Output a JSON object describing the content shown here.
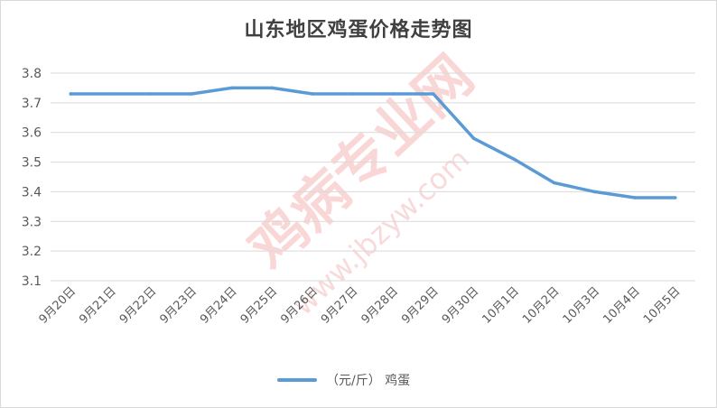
{
  "chart_data": {
    "type": "line",
    "title": "山东地区鸡蛋价格走势图",
    "categories": [
      "9月20日",
      "9月21日",
      "9月22日",
      "9月23日",
      "9月24日",
      "9月25日",
      "9月26日",
      "9月27日",
      "9月28日",
      "9月29日",
      "9月30日",
      "10月1日",
      "10月2日",
      "10月3日",
      "10月4日",
      "10月5日"
    ],
    "series": [
      {
        "name": "（元/斤） 鸡蛋",
        "values": [
          3.73,
          3.73,
          3.73,
          3.73,
          3.75,
          3.75,
          3.73,
          3.73,
          3.73,
          3.73,
          3.58,
          3.51,
          3.43,
          3.4,
          3.38,
          3.38
        ]
      }
    ],
    "ylim": [
      3.1,
      3.8
    ],
    "yticks": [
      "3.1",
      "3.2",
      "3.3",
      "3.4",
      "3.5",
      "3.6",
      "3.7",
      "3.8"
    ],
    "xlabel": "",
    "ylabel": "",
    "grid": true,
    "legend_position": "bottom",
    "colors": {
      "line": "#5b9bd5",
      "grid": "#d9d9d9",
      "axis_text": "#595959"
    }
  },
  "watermark": {
    "site_name": "鸡病专业网",
    "url": "www.jbzyw.com"
  }
}
